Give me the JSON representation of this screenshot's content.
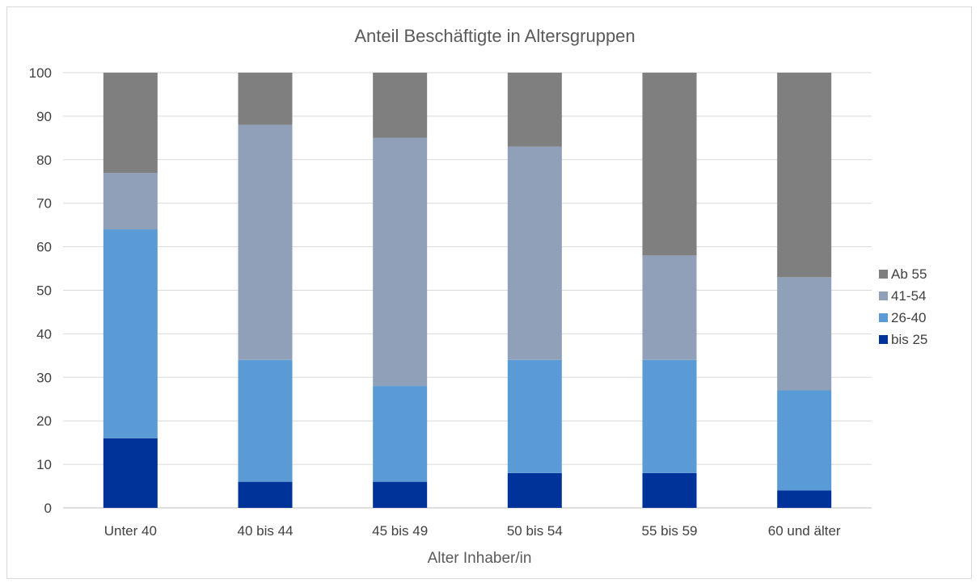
{
  "chart_data": {
    "type": "bar",
    "stacked": true,
    "title": "Anteil Beschäftigte in Altersgruppen",
    "xlabel": "Alter Inhaber/in",
    "ylabel": "",
    "ylim": [
      0,
      100
    ],
    "yticks": [
      0,
      10,
      20,
      30,
      40,
      50,
      60,
      70,
      80,
      90,
      100
    ],
    "grid": true,
    "legend_position": "right",
    "categories": [
      "Unter 40",
      "40 bis 44",
      "45 bis 49",
      "50 bis 54",
      "55 bis 59",
      "60 und älter"
    ],
    "series": [
      {
        "name": "bis 25",
        "color": "#003399",
        "values": [
          16,
          6,
          6,
          8,
          8,
          4
        ]
      },
      {
        "name": "26-40",
        "color": "#5b9bd5",
        "values": [
          48,
          28,
          22,
          26,
          26,
          23
        ]
      },
      {
        "name": "41-54",
        "color": "#8fa0b8",
        "values": [
          13,
          54,
          57,
          49,
          24,
          26
        ]
      },
      {
        "name": "Ab 55",
        "color": "#7f7f7f",
        "values": [
          23,
          12,
          15,
          17,
          42,
          47
        ]
      }
    ]
  }
}
